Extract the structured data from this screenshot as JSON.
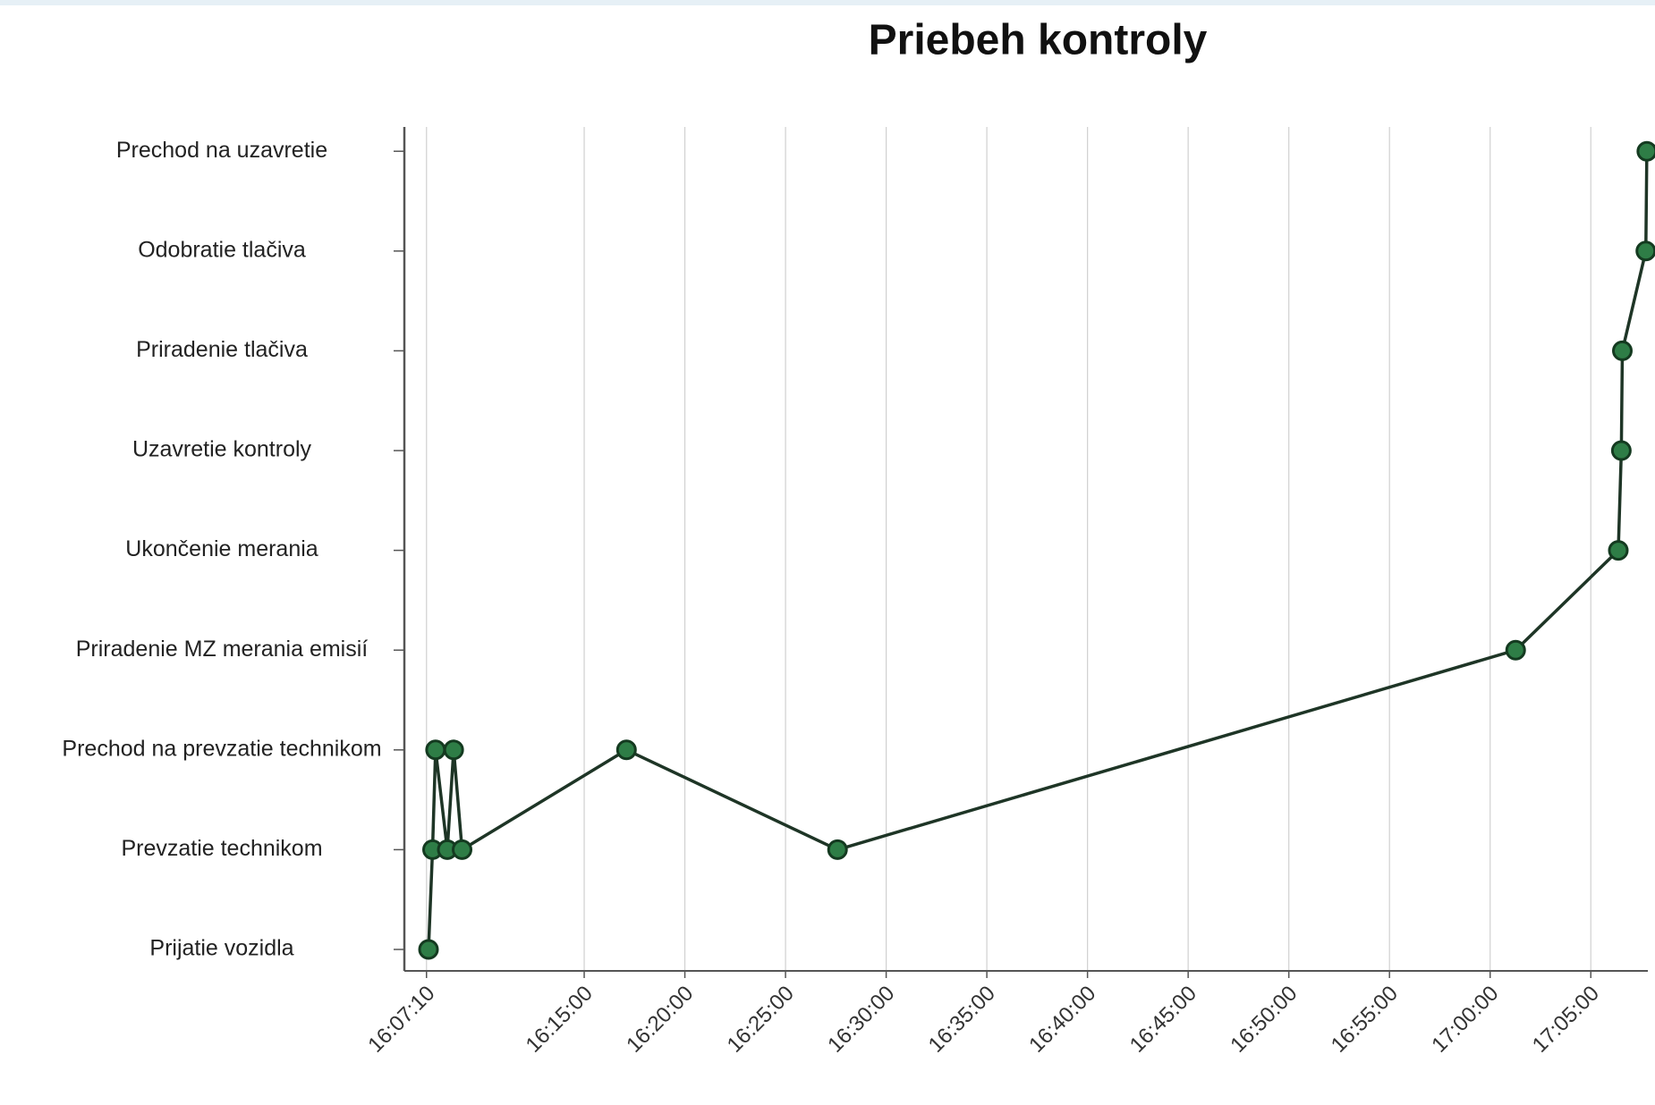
{
  "chart_data": {
    "type": "line",
    "title": "Priebeh kontroly",
    "y_categories": [
      "Prijatie vozidla",
      "Prevzatie technikom",
      "Prechod na prevzatie technikom",
      "Priradenie MZ merania emisií",
      "Ukončenie merania",
      "Uzavretie kontroly",
      "Priradenie tlačiva",
      "Odobratie tlačiva",
      "Prechod na uzavretie"
    ],
    "x": [
      "16:07:16",
      "16:07:28",
      "16:07:37",
      "16:08:12",
      "16:08:31",
      "16:08:56",
      "16:17:06",
      "16:27:35",
      "17:01:16",
      "17:06:22",
      "17:06:31",
      "17:06:34",
      "17:07:44",
      "17:07:47"
    ],
    "values": [
      "Prijatie vozidla",
      "Prevzatie technikom",
      "Prechod na prevzatie technikom",
      "Prevzatie technikom",
      "Prechod na prevzatie technikom",
      "Prevzatie technikom",
      "Prechod na prevzatie technikom",
      "Prevzatie technikom",
      "Priradenie MZ merania emisií",
      "Ukončenie merania",
      "Uzavretie kontroly",
      "Priradenie tlačiva",
      "Odobratie tlačiva",
      "Prechod na uzavretie"
    ],
    "color": "#2e7d46",
    "line_color": "#1e3526",
    "xlim": [
      "16:06:04",
      "17:07:50"
    ],
    "xticks": [
      "16:07:10",
      "16:15:00",
      "16:20:00",
      "16:25:00",
      "16:30:00",
      "16:35:00",
      "16:40:00",
      "16:45:00",
      "16:50:00",
      "16:55:00",
      "17:00:00",
      "17:05:00"
    ],
    "grid": true
  }
}
